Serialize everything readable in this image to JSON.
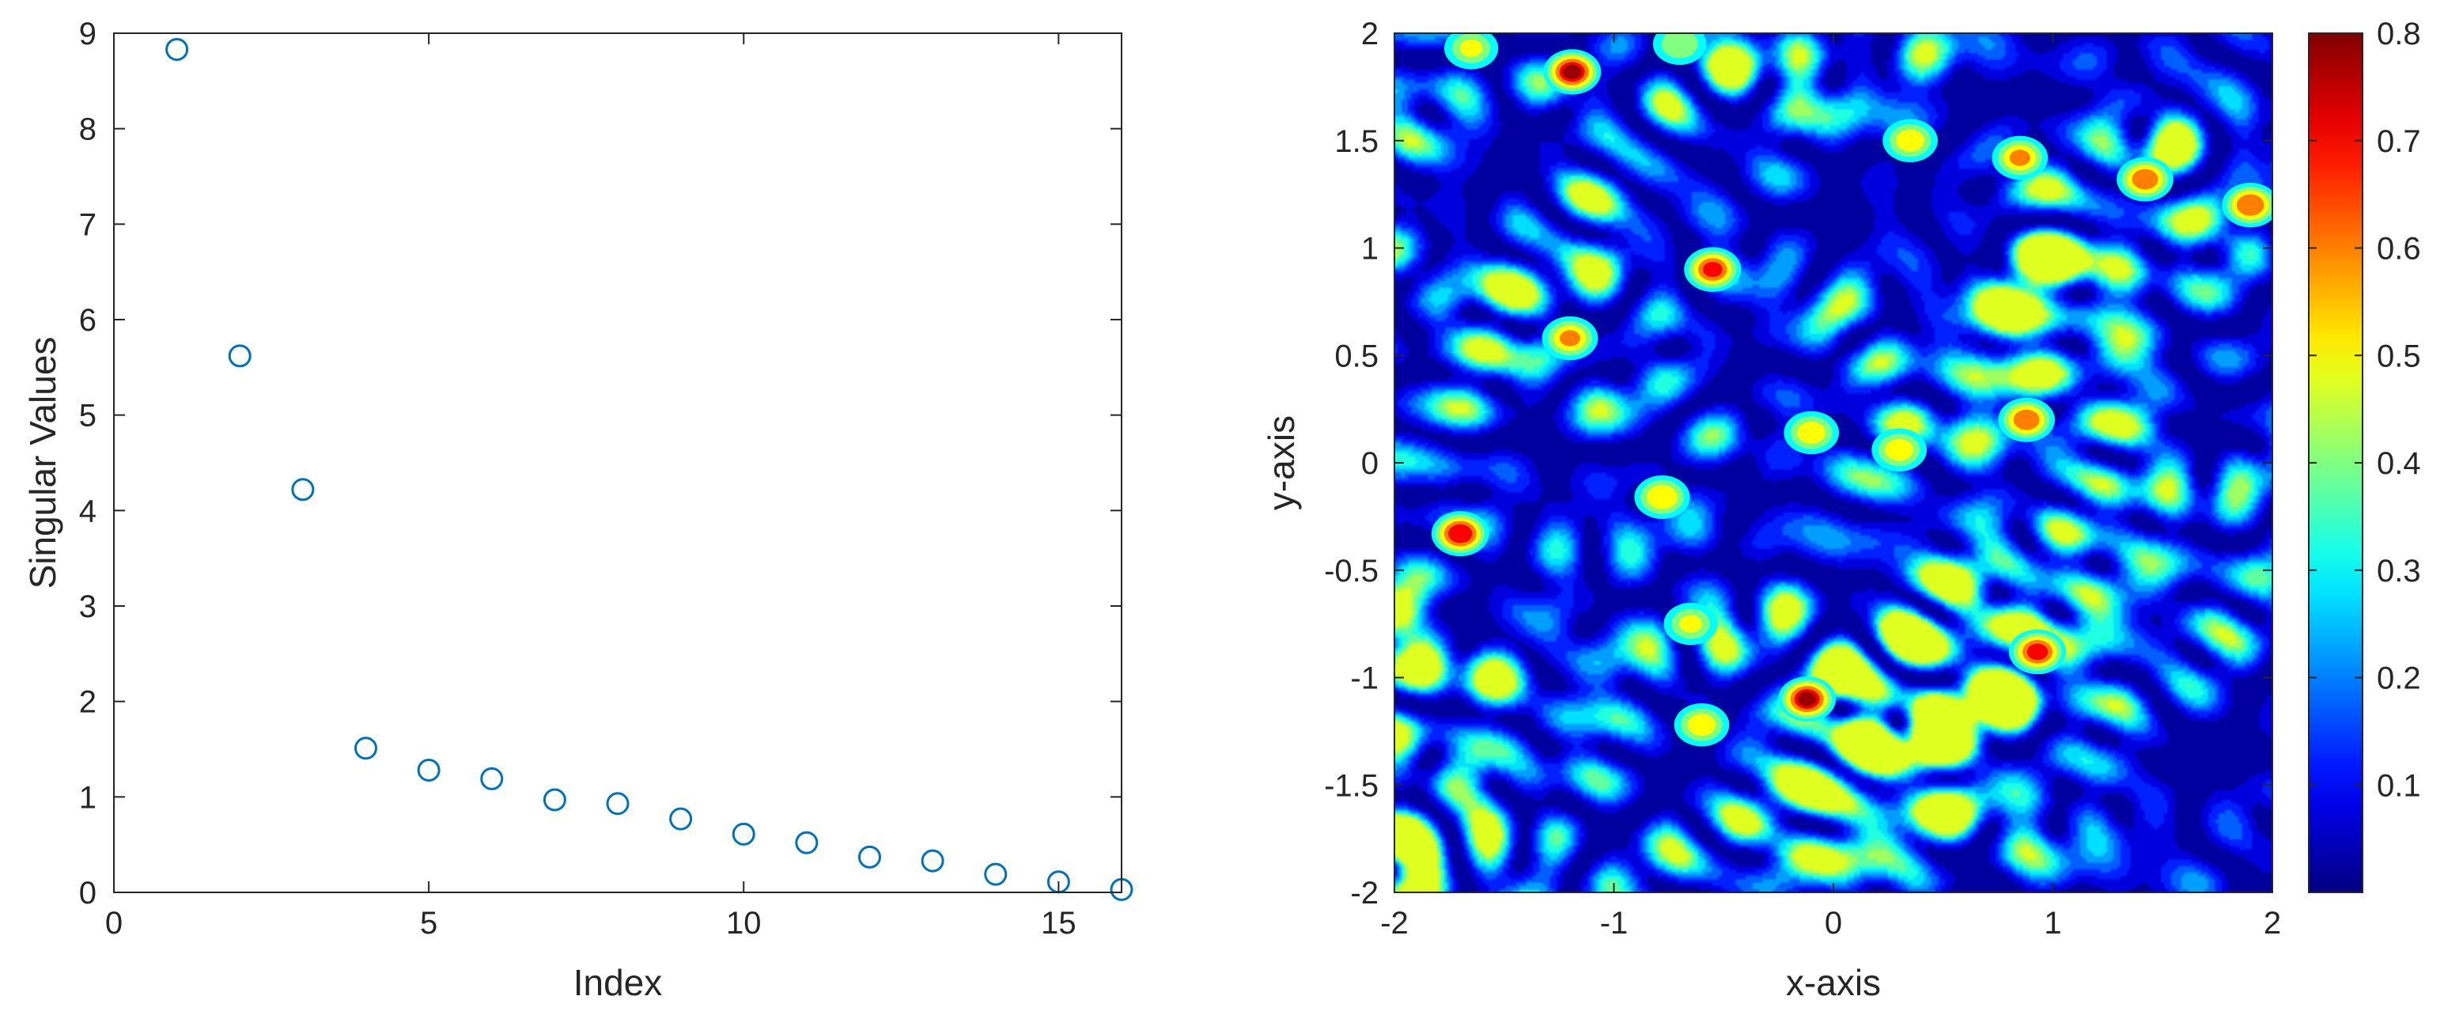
{
  "chart_data": [
    {
      "type": "scatter",
      "xlabel": "Index",
      "ylabel": "Singular Values",
      "xlim": [
        0,
        16
      ],
      "ylim": [
        0,
        9
      ],
      "xticks": [
        0,
        5,
        10,
        15
      ],
      "yticks": [
        0,
        1,
        2,
        3,
        4,
        5,
        6,
        7,
        8,
        9
      ],
      "marker": "open-circle",
      "marker_color": "#0072BD",
      "grid": false,
      "x": [
        1,
        2,
        3,
        4,
        5,
        6,
        7,
        8,
        9,
        10,
        11,
        12,
        13,
        14,
        15,
        16
      ],
      "y": [
        8.83,
        5.62,
        4.22,
        1.51,
        1.28,
        1.19,
        0.97,
        0.93,
        0.77,
        0.61,
        0.52,
        0.37,
        0.33,
        0.19,
        0.11,
        0.03
      ]
    },
    {
      "type": "heatmap",
      "style": "filled-contour",
      "xlabel": "x-axis",
      "ylabel": "y-axis",
      "xlim": [
        -2,
        2
      ],
      "ylim": [
        -2,
        2
      ],
      "xticks": [
        "-2",
        "-1",
        "0",
        "1",
        "2"
      ],
      "yticks": [
        "-2",
        "-1.5",
        "-1",
        "-0.5",
        "0",
        "0.5",
        "1",
        "1.5",
        "2"
      ],
      "colormap": "jet",
      "colorbar": {
        "placement": "right",
        "range": [
          0,
          0.8
        ],
        "ticks": [
          "0.1",
          "0.2",
          "0.3",
          "0.4",
          "0.5",
          "0.6",
          "0.7",
          "0.8"
        ]
      },
      "peaks": [
        {
          "x": -1.19,
          "y": 1.82,
          "value": 0.78
        },
        {
          "x": -1.7,
          "y": -0.33,
          "value": 0.76
        },
        {
          "x": -0.12,
          "y": -1.1,
          "value": 0.78
        },
        {
          "x": 0.93,
          "y": -0.88,
          "value": 0.72
        },
        {
          "x": -0.55,
          "y": 0.9,
          "value": 0.7
        },
        {
          "x": 1.9,
          "y": 1.2,
          "value": 0.68
        },
        {
          "x": 1.42,
          "y": 1.32,
          "value": 0.66
        },
        {
          "x": 0.88,
          "y": 0.2,
          "value": 0.66
        },
        {
          "x": 0.85,
          "y": 1.42,
          "value": 0.6
        },
        {
          "x": -1.2,
          "y": 0.58,
          "value": 0.6
        },
        {
          "x": -0.78,
          "y": -0.16,
          "value": 0.58
        },
        {
          "x": -0.1,
          "y": 0.14,
          "value": 0.55
        },
        {
          "x": 0.3,
          "y": 0.06,
          "value": 0.55
        },
        {
          "x": 0.35,
          "y": 1.5,
          "value": 0.55
        },
        {
          "x": -0.6,
          "y": -1.22,
          "value": 0.55
        },
        {
          "x": -0.65,
          "y": -0.75,
          "value": 0.5
        },
        {
          "x": -1.65,
          "y": 1.93,
          "value": 0.5
        },
        {
          "x": -0.7,
          "y": 1.95,
          "value": 0.48
        }
      ]
    }
  ]
}
